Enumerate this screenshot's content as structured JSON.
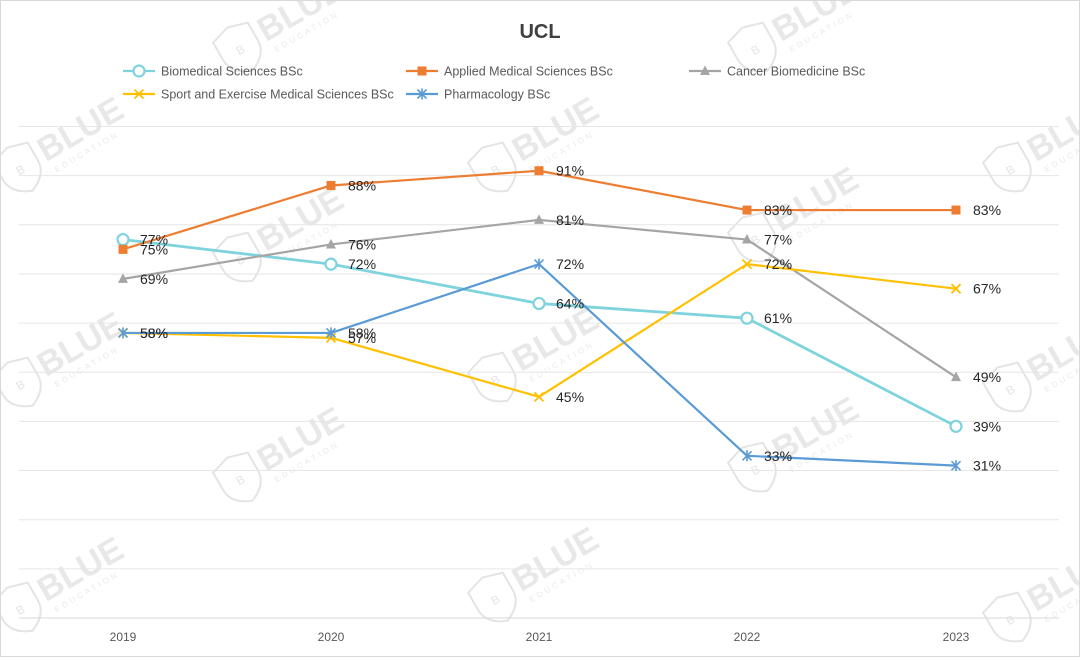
{
  "chart_data": {
    "type": "line",
    "title": "UCL",
    "categories": [
      "2019",
      "2020",
      "2021",
      "2022",
      "2023"
    ],
    "ylim": [
      0,
      100
    ],
    "grid": true,
    "legend": "top",
    "series": [
      {
        "name": "Biomedical Sciences BSc",
        "values": [
          77,
          72,
          64,
          61,
          39
        ],
        "color": "#7fd3dc",
        "marker": "circle-open"
      },
      {
        "name": "Applied Medical Sciences BSc",
        "values": [
          75,
          88,
          91,
          83,
          83
        ],
        "color": "#ed7d31",
        "marker": "square"
      },
      {
        "name": "Cancer Biomedicine BSc",
        "values": [
          69,
          76,
          81,
          77,
          49
        ],
        "color": "#a5a5a5",
        "marker": "triangle"
      },
      {
        "name": "Sport and Exercise Medical Sciences BSc",
        "values": [
          58,
          57,
          45,
          72,
          67
        ],
        "color": "#ffc000",
        "marker": "x"
      },
      {
        "name": "Pharmacology BSc",
        "values": [
          58,
          58,
          72,
          33,
          31
        ],
        "color": "#5b9bd5",
        "marker": "star"
      }
    ]
  },
  "watermark": {
    "text": "BLUE",
    "subtext": "EDUCATION",
    "emblem": "B"
  }
}
